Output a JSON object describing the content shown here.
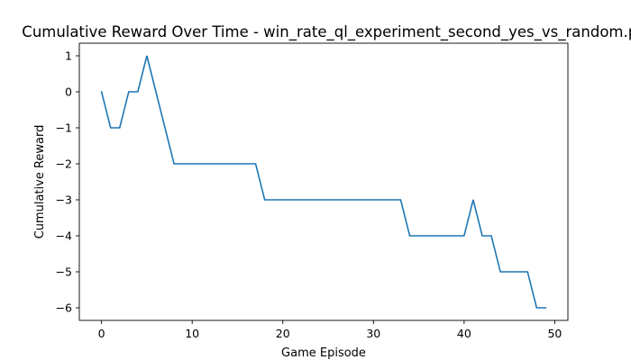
{
  "chart_data": {
    "type": "line",
    "title": "Cumulative Reward Over Time - win_rate_ql_experiment_second_yes_vs_random.pn",
    "xlabel": "Game Episode",
    "ylabel": "Cumulative Reward",
    "xlim": [
      -2.45,
      51.45
    ],
    "ylim": [
      -6.35,
      1.35
    ],
    "xticks": [
      0,
      10,
      20,
      30,
      40,
      50
    ],
    "yticks": [
      1,
      0,
      -1,
      -2,
      -3,
      -4,
      -5,
      -6
    ],
    "grid": false,
    "legend": false,
    "series": [
      {
        "color": "#1f77b4",
        "x": [
          0,
          1,
          2,
          3,
          4,
          5,
          6,
          7,
          8,
          9,
          10,
          11,
          12,
          13,
          14,
          15,
          16,
          17,
          18,
          19,
          20,
          21,
          22,
          23,
          24,
          25,
          26,
          27,
          28,
          29,
          30,
          31,
          32,
          33,
          34,
          35,
          36,
          37,
          38,
          39,
          40,
          41,
          42,
          43,
          44,
          45,
          46,
          47,
          48,
          49
        ],
        "y": [
          0,
          -1,
          -1,
          0,
          0,
          1,
          0,
          -1,
          -2,
          -2,
          -2,
          -2,
          -2,
          -2,
          -2,
          -2,
          -2,
          -2,
          -3,
          -3,
          -3,
          -3,
          -3,
          -3,
          -3,
          -3,
          -3,
          -3,
          -3,
          -3,
          -3,
          -3,
          -3,
          -3,
          -4,
          -4,
          -4,
          -4,
          -4,
          -4,
          -4,
          -3,
          -4,
          -4,
          -5,
          -5,
          -5,
          -5,
          -6,
          -6
        ]
      }
    ]
  }
}
